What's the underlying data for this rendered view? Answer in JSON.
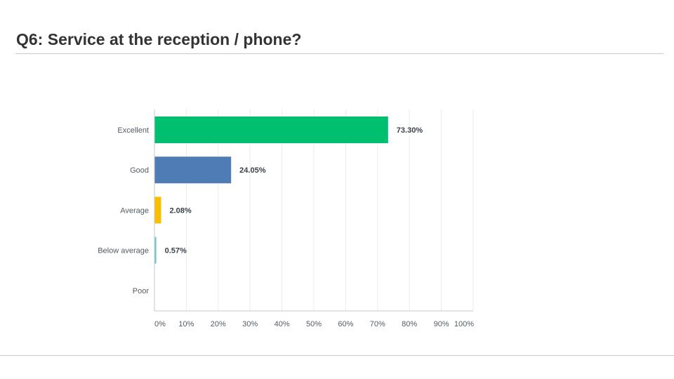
{
  "slide": {
    "title": "Q6:  Service at the reception / phone?"
  },
  "chart_data": {
    "type": "bar",
    "orientation": "horizontal",
    "categories": [
      "Excellent",
      "Good",
      "Average",
      "Below average",
      "Poor"
    ],
    "values": [
      73.3,
      24.05,
      2.08,
      0.57,
      0
    ],
    "value_labels": [
      "73.30%",
      "24.05%",
      "2.08%",
      "0.57%",
      ""
    ],
    "colors": [
      "#00bf6f",
      "#507cb6",
      "#f9be00",
      "#6bc8cd",
      "#6bc8cd"
    ],
    "xlim": [
      0,
      100
    ],
    "xticks": [
      0,
      10,
      20,
      30,
      40,
      50,
      60,
      70,
      80,
      90,
      100
    ],
    "xtick_labels": [
      "0%",
      "10%",
      "20%",
      "30%",
      "40%",
      "50%",
      "60%",
      "70%",
      "80%",
      "90%",
      "100%"
    ],
    "grid": true,
    "legend": "none",
    "gridline_color": "#ececec",
    "axis_color": "#c9c9c9"
  }
}
